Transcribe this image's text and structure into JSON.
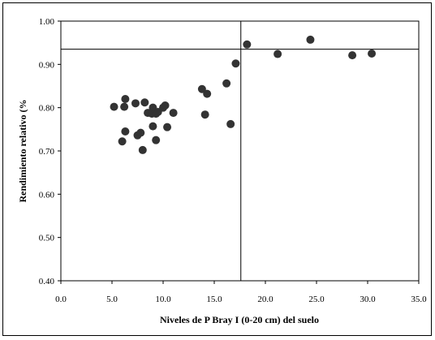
{
  "chart_data": {
    "type": "scatter",
    "title": "",
    "xlabel": "Niveles de P Bray I (0-20 cm) del suelo",
    "ylabel": "Rendimiento relativo (%",
    "xlim": [
      0,
      35
    ],
    "ylim": [
      0.4,
      1.0
    ],
    "x_ticks": [
      "0.0",
      "5.0",
      "10.0",
      "15.0",
      "20.0",
      "25.0",
      "30.0",
      "35.0"
    ],
    "y_ticks": [
      "0.40",
      "0.50",
      "0.60",
      "0.70",
      "0.80",
      "0.90",
      "1.00"
    ],
    "grid": false,
    "legend": "none",
    "reference_lines": {
      "vertical_x": 17.6,
      "horizontal_y": 0.935
    },
    "marker_color": "#333333",
    "series": [
      {
        "points": [
          [
            5.2,
            0.802
          ],
          [
            6.2,
            0.802
          ],
          [
            6.3,
            0.82
          ],
          [
            7.3,
            0.81
          ],
          [
            8.2,
            0.812
          ],
          [
            8.5,
            0.788
          ],
          [
            8.9,
            0.786
          ],
          [
            9.0,
            0.8
          ],
          [
            9.3,
            0.786
          ],
          [
            9.5,
            0.79
          ],
          [
            10.0,
            0.8
          ],
          [
            10.2,
            0.805
          ],
          [
            11.0,
            0.788
          ],
          [
            6.0,
            0.722
          ],
          [
            6.3,
            0.745
          ],
          [
            7.5,
            0.736
          ],
          [
            7.8,
            0.742
          ],
          [
            8.0,
            0.702
          ],
          [
            9.0,
            0.757
          ],
          [
            9.3,
            0.725
          ],
          [
            10.4,
            0.755
          ],
          [
            13.8,
            0.843
          ],
          [
            14.3,
            0.832
          ],
          [
            14.1,
            0.784
          ],
          [
            16.2,
            0.856
          ],
          [
            16.6,
            0.762
          ],
          [
            17.1,
            0.902
          ],
          [
            18.2,
            0.946
          ],
          [
            21.2,
            0.924
          ],
          [
            24.4,
            0.957
          ],
          [
            28.5,
            0.921
          ],
          [
            30.4,
            0.925
          ]
        ]
      }
    ]
  }
}
